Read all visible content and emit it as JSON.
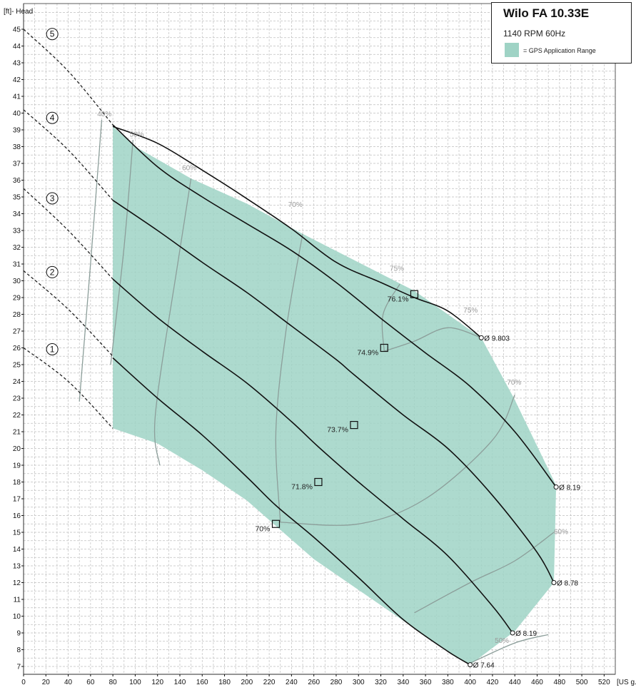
{
  "chart_data": {
    "type": "line",
    "ylabel": "[ft]- Head",
    "xlabel": "[US g.p.m.]",
    "xlim": [
      0,
      530
    ],
    "ylim": [
      7,
      46
    ],
    "grid": true,
    "x_ticks": [
      0,
      20,
      40,
      60,
      80,
      100,
      120,
      140,
      160,
      180,
      200,
      220,
      240,
      260,
      280,
      300,
      320,
      340,
      360,
      380,
      400,
      420,
      440,
      460,
      480,
      500,
      520
    ],
    "y_ticks": [
      7,
      8,
      9,
      10,
      11,
      12,
      13,
      14,
      15,
      16,
      17,
      18,
      19,
      20,
      21,
      22,
      23,
      24,
      25,
      26,
      27,
      28,
      29,
      30,
      31,
      32,
      33,
      34,
      35,
      36,
      37,
      38,
      39,
      40,
      41,
      42,
      43,
      44,
      45
    ],
    "series": [
      {
        "name": "1",
        "label": "Ø 7.64",
        "x": [
          80,
          120,
          160,
          200,
          226,
          260,
          300,
          340,
          380,
          400
        ],
        "y": [
          25.4,
          23.0,
          20.8,
          18.3,
          16.6,
          14.7,
          12.3,
          9.8,
          7.9,
          7.1
        ]
      },
      {
        "name": "2",
        "label": "Ø 8.19",
        "x": [
          80,
          120,
          160,
          200,
          240,
          264,
          300,
          340,
          380,
          420,
          438
        ],
        "y": [
          30.1,
          27.8,
          25.8,
          23.9,
          21.6,
          20.1,
          18.0,
          15.8,
          13.6,
          10.6,
          9.0
        ]
      },
      {
        "name": "3",
        "label": "Ø 8.78",
        "x": [
          80,
          120,
          160,
          200,
          240,
          280,
          296,
          340,
          380,
          420,
          460,
          475
        ],
        "y": [
          34.8,
          33.0,
          31.1,
          29.3,
          27.3,
          25.3,
          24.4,
          22.0,
          20.0,
          17.2,
          13.8,
          12.0
        ]
      },
      {
        "name": "4",
        "label": "Ø 8.19",
        "x": [
          80,
          120,
          160,
          200,
          240,
          280,
          323,
          360,
          400,
          440,
          477
        ],
        "y": [
          39.3,
          36.8,
          35.0,
          33.4,
          31.8,
          29.9,
          27.6,
          25.7,
          23.7,
          21.0,
          17.7
        ]
      },
      {
        "name": "5",
        "label": "Ø 9.803",
        "x": [
          80,
          120,
          160,
          200,
          240,
          280,
          320,
          350,
          380,
          410
        ],
        "y": [
          39.2,
          38.2,
          36.6,
          34.9,
          33.1,
          31.1,
          29.9,
          29.0,
          28.2,
          26.6
        ]
      }
    ],
    "dashed_extensions": [
      {
        "name": "1",
        "x": [
          0,
          40,
          80
        ],
        "y": [
          26.0,
          24.0,
          21.2
        ]
      },
      {
        "name": "2",
        "x": [
          0,
          40,
          80
        ],
        "y": [
          30.6,
          28.3,
          25.5
        ]
      },
      {
        "name": "3",
        "x": [
          0,
          40,
          80
        ],
        "y": [
          35.5,
          33.0,
          30.1
        ]
      },
      {
        "name": "4",
        "x": [
          0,
          40,
          80
        ],
        "y": [
          40.2,
          37.8,
          34.8
        ]
      },
      {
        "name": "5",
        "x": [
          0,
          40,
          80
        ],
        "y": [
          45.0,
          42.5,
          39.3
        ]
      }
    ],
    "bep_points": [
      {
        "x": 226,
        "y": 15.5,
        "label": "70%"
      },
      {
        "x": 264,
        "y": 18.0,
        "label": "71.8%"
      },
      {
        "x": 296,
        "y": 21.4,
        "label": "73.7%"
      },
      {
        "x": 323,
        "y": 26.0,
        "label": "74.9%"
      },
      {
        "x": 350,
        "y": 29.2,
        "label": "76.1%"
      }
    ],
    "gps_application_range": {
      "x": [
        80,
        100,
        150,
        200,
        250,
        300,
        350,
        410,
        440,
        477,
        475,
        440,
        400,
        380,
        260,
        200,
        160,
        120,
        80
      ],
      "y": [
        39.2,
        38.0,
        36.1,
        34.6,
        32.8,
        31.1,
        29.4,
        26.6,
        22.9,
        17.8,
        12.0,
        9.1,
        7.1,
        7.9,
        13.4,
        16.9,
        18.7,
        20.3,
        21.2
      ]
    },
    "efficiency_lines": [
      {
        "label": "40%",
        "x": [
          70,
          60,
          50
        ],
        "y": [
          39.6,
          31.0,
          22.8
        ]
      },
      {
        "label": "50%",
        "x": [
          98,
          90,
          78
        ],
        "y": [
          38.4,
          32.0,
          25.0
        ]
      },
      {
        "label": "60%",
        "x": [
          150,
          138,
          118,
          122
        ],
        "y": [
          36.1,
          31.0,
          22.0,
          19.0
        ]
      },
      {
        "label": "70%",
        "x": [
          250,
          235,
          226,
          230
        ],
        "y": [
          32.8,
          27.0,
          21.0,
          15.6
        ]
      },
      {
        "label": "75%",
        "x": [
          337,
          322,
          323
        ],
        "y": [
          29.8,
          28.0,
          25.8
        ]
      },
      {
        "label": "75%",
        "x": [
          323,
          350,
          380,
          410
        ],
        "y": [
          25.8,
          26.4,
          27.2,
          26.6
        ]
      },
      {
        "label": "70%",
        "x": [
          230,
          300,
          360,
          420,
          440
        ],
        "y": [
          15.6,
          15.5,
          17.0,
          20.5,
          23.2
        ]
      },
      {
        "label": "60%",
        "x": [
          350,
          400,
          440,
          475
        ],
        "y": [
          10.2,
          12.0,
          13.3,
          15.0
        ]
      },
      {
        "label": "50%",
        "x": [
          400,
          440,
          470
        ],
        "y": [
          7.2,
          8.4,
          8.9
        ]
      }
    ],
    "efficiency_labels": [
      {
        "x": 66,
        "y": 39.8,
        "text": "40%"
      },
      {
        "x": 95,
        "y": 38.6,
        "text": "50%"
      },
      {
        "x": 142,
        "y": 36.6,
        "text": "60%"
      },
      {
        "x": 237,
        "y": 34.4,
        "text": "70%"
      },
      {
        "x": 328,
        "y": 30.6,
        "text": "75%"
      },
      {
        "x": 394,
        "y": 28.1,
        "text": "75%"
      },
      {
        "x": 433,
        "y": 23.8,
        "text": "70%"
      },
      {
        "x": 475,
        "y": 14.9,
        "text": "60%"
      },
      {
        "x": 422,
        "y": 8.4,
        "text": "50%"
      }
    ],
    "curve_numbers": [
      {
        "x": 18,
        "y": 26.0,
        "text": "1"
      },
      {
        "x": 18,
        "y": 30.6,
        "text": "2"
      },
      {
        "x": 18,
        "y": 35.0,
        "text": "3"
      },
      {
        "x": 18,
        "y": 39.8,
        "text": "4"
      },
      {
        "x": 18,
        "y": 44.8,
        "text": "5"
      }
    ]
  },
  "legend": {
    "title": "Wilo FA 10.33E",
    "subtitle": "1140 RPM  60Hz",
    "range_label": "= GPS Application Range"
  },
  "colors": {
    "range_fill": "#9fd3c5",
    "curve": "#111111",
    "eff_line": "#8c9e9a",
    "grid": "#bfbfbf"
  }
}
